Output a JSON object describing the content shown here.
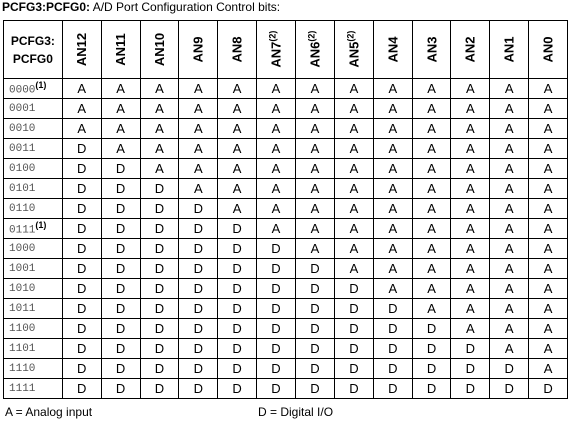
{
  "caption": {
    "bold": "PCFG3:PCFG0:",
    "text": " A/D Port Configuration Control bits:"
  },
  "table": {
    "corner": [
      "PCFG3:",
      "PCFG0"
    ],
    "columns": [
      {
        "label": "AN12"
      },
      {
        "label": "AN11"
      },
      {
        "label": "AN10"
      },
      {
        "label": "AN9"
      },
      {
        "label": "AN8"
      },
      {
        "label": "AN7",
        "note": "(2)"
      },
      {
        "label": "AN6",
        "note": "(2)"
      },
      {
        "label": "AN5",
        "note": "(2)"
      },
      {
        "label": "AN4"
      },
      {
        "label": "AN3"
      },
      {
        "label": "AN2"
      },
      {
        "label": "AN1"
      },
      {
        "label": "AN0"
      }
    ],
    "rows": [
      {
        "code": "0000",
        "note": "(1)",
        "cells": [
          "A",
          "A",
          "A",
          "A",
          "A",
          "A",
          "A",
          "A",
          "A",
          "A",
          "A",
          "A",
          "A"
        ]
      },
      {
        "code": "0001",
        "cells": [
          "A",
          "A",
          "A",
          "A",
          "A",
          "A",
          "A",
          "A",
          "A",
          "A",
          "A",
          "A",
          "A"
        ]
      },
      {
        "code": "0010",
        "cells": [
          "A",
          "A",
          "A",
          "A",
          "A",
          "A",
          "A",
          "A",
          "A",
          "A",
          "A",
          "A",
          "A"
        ]
      },
      {
        "code": "0011",
        "cells": [
          "D",
          "A",
          "A",
          "A",
          "A",
          "A",
          "A",
          "A",
          "A",
          "A",
          "A",
          "A",
          "A"
        ]
      },
      {
        "code": "0100",
        "cells": [
          "D",
          "D",
          "A",
          "A",
          "A",
          "A",
          "A",
          "A",
          "A",
          "A",
          "A",
          "A",
          "A"
        ]
      },
      {
        "code": "0101",
        "cells": [
          "D",
          "D",
          "D",
          "A",
          "A",
          "A",
          "A",
          "A",
          "A",
          "A",
          "A",
          "A",
          "A"
        ]
      },
      {
        "code": "0110",
        "cells": [
          "D",
          "D",
          "D",
          "D",
          "A",
          "A",
          "A",
          "A",
          "A",
          "A",
          "A",
          "A",
          "A"
        ]
      },
      {
        "code": "0111",
        "note": "(1)",
        "cells": [
          "D",
          "D",
          "D",
          "D",
          "D",
          "A",
          "A",
          "A",
          "A",
          "A",
          "A",
          "A",
          "A"
        ]
      },
      {
        "code": "1000",
        "cells": [
          "D",
          "D",
          "D",
          "D",
          "D",
          "D",
          "A",
          "A",
          "A",
          "A",
          "A",
          "A",
          "A"
        ]
      },
      {
        "code": "1001",
        "cells": [
          "D",
          "D",
          "D",
          "D",
          "D",
          "D",
          "D",
          "A",
          "A",
          "A",
          "A",
          "A",
          "A"
        ]
      },
      {
        "code": "1010",
        "cells": [
          "D",
          "D",
          "D",
          "D",
          "D",
          "D",
          "D",
          "D",
          "A",
          "A",
          "A",
          "A",
          "A"
        ]
      },
      {
        "code": "1011",
        "cells": [
          "D",
          "D",
          "D",
          "D",
          "D",
          "D",
          "D",
          "D",
          "D",
          "A",
          "A",
          "A",
          "A"
        ]
      },
      {
        "code": "1100",
        "cells": [
          "D",
          "D",
          "D",
          "D",
          "D",
          "D",
          "D",
          "D",
          "D",
          "D",
          "A",
          "A",
          "A"
        ]
      },
      {
        "code": "1101",
        "cells": [
          "D",
          "D",
          "D",
          "D",
          "D",
          "D",
          "D",
          "D",
          "D",
          "D",
          "D",
          "A",
          "A"
        ]
      },
      {
        "code": "1110",
        "cells": [
          "D",
          "D",
          "D",
          "D",
          "D",
          "D",
          "D",
          "D",
          "D",
          "D",
          "D",
          "D",
          "A"
        ]
      },
      {
        "code": "1111",
        "cells": [
          "D",
          "D",
          "D",
          "D",
          "D",
          "D",
          "D",
          "D",
          "D",
          "D",
          "D",
          "D",
          "D"
        ]
      }
    ]
  },
  "legend": [
    "A = Analog input",
    "D = Digital I/O"
  ]
}
